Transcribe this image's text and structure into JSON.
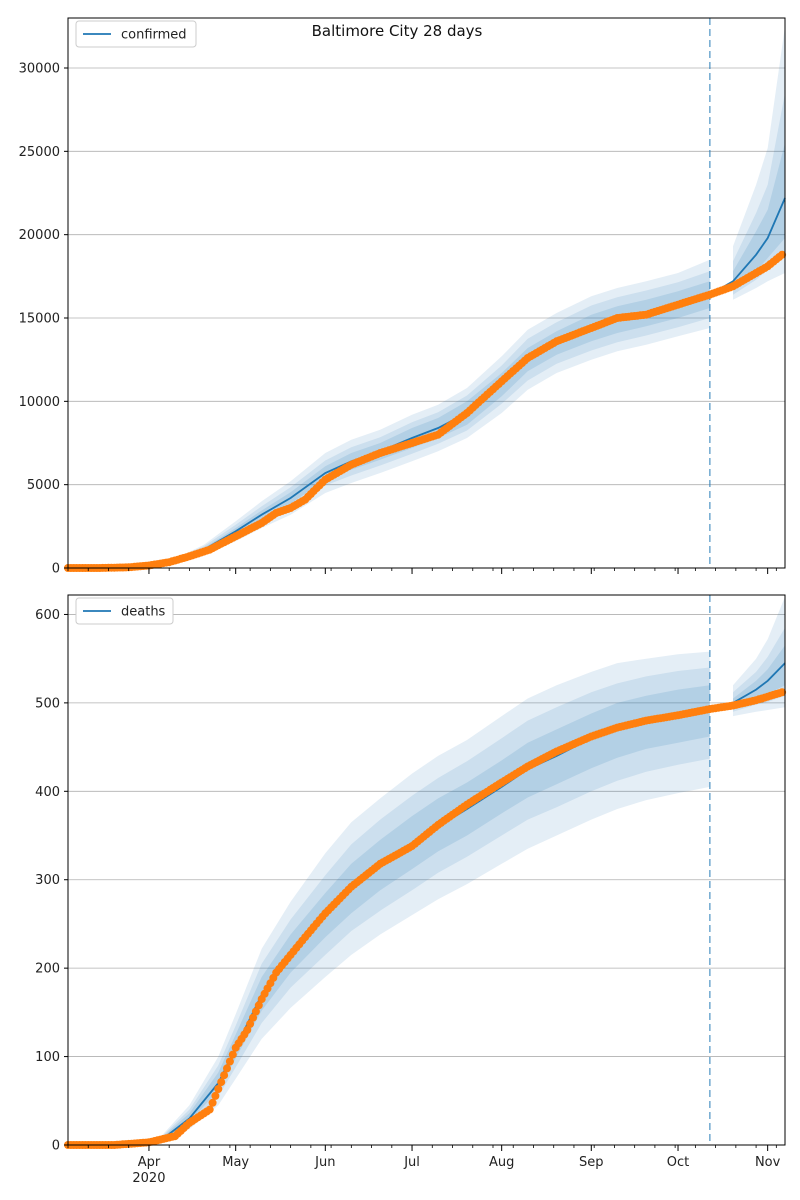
{
  "chart_data": [
    {
      "type": "line",
      "title": "Baltimore City 28 days",
      "xlabel": "",
      "ylabel": "",
      "x_axis": {
        "type": "date",
        "range": [
          "2020-03-04",
          "2020-11-07"
        ],
        "month_labels": [
          "Apr",
          "May",
          "Jun",
          "Jul",
          "Aug",
          "Sep",
          "Oct",
          "Nov"
        ],
        "year_label": "2020"
      },
      "ylim": [
        0,
        33000
      ],
      "yticks": [
        0,
        5000,
        10000,
        15000,
        20000,
        25000,
        30000
      ],
      "grid": "horizontal",
      "legend": {
        "placement": "top-left",
        "entries": [
          "confirmed"
        ]
      },
      "forecast_start": "2020-10-12",
      "series": [
        {
          "name": "confirmed",
          "color": "#1f77b4",
          "points": [
            [
              "2020-03-04",
              0
            ],
            [
              "2020-03-15",
              0
            ],
            [
              "2020-03-25",
              50
            ],
            [
              "2020-04-01",
              150
            ],
            [
              "2020-04-10",
              450
            ],
            [
              "2020-04-20",
              1100
            ],
            [
              "2020-05-01",
              2200
            ],
            [
              "2020-05-10",
              3200
            ],
            [
              "2020-05-20",
              4200
            ],
            [
              "2020-06-01",
              5700
            ],
            [
              "2020-06-10",
              6400
            ],
            [
              "2020-06-20",
              7000
            ],
            [
              "2020-07-01",
              7800
            ],
            [
              "2020-07-10",
              8400
            ],
            [
              "2020-07-20",
              9300
            ],
            [
              "2020-08-01",
              11000
            ],
            [
              "2020-08-10",
              12500
            ],
            [
              "2020-08-20",
              13500
            ],
            [
              "2020-09-01",
              14400
            ],
            [
              "2020-09-10",
              14900
            ],
            [
              "2020-09-20",
              15300
            ],
            [
              "2020-10-01",
              15800
            ],
            [
              "2020-10-12",
              16400
            ],
            [
              "2020-10-20",
              17200
            ],
            [
              "2020-10-28",
              18800
            ],
            [
              "2020-11-01",
              19800
            ],
            [
              "2020-11-07",
              22200
            ]
          ],
          "bands": [
            [
              [
                0,
                0,
                0,
                0,
                0,
                0
              ],
              [
                0,
                0,
                0,
                0,
                0,
                0
              ],
              [
                20,
                30,
                40,
                60,
                70,
                80
              ],
              [
                100,
                115,
                130,
                170,
                185,
                200
              ],
              [
                340,
                370,
                400,
                500,
                530,
                560
              ],
              [
                800,
                900,
                1000,
                1200,
                1300,
                1400
              ],
              [
                1600,
                1800,
                2000,
                2400,
                2600,
                2800
              ],
              [
                2400,
                2700,
                2950,
                3450,
                3700,
                4000
              ],
              [
                3200,
                3550,
                3850,
                4550,
                4850,
                5200
              ],
              [
                4500,
                4950,
                5300,
                6100,
                6450,
                6900
              ],
              [
                5100,
                5550,
                5900,
                6900,
                7250,
                7700
              ],
              [
                5700,
                6150,
                6500,
                7500,
                7850,
                8300
              ],
              [
                6400,
                6850,
                7200,
                8400,
                8750,
                9200
              ],
              [
                7000,
                7450,
                7800,
                9000,
                9350,
                9800
              ],
              [
                7800,
                8250,
                8600,
                10000,
                10350,
                10800
              ],
              [
                9300,
                9850,
                10300,
                11700,
                12150,
                12700
              ],
              [
                10700,
                11250,
                11800,
                13200,
                13750,
                14300
              ],
              [
                11700,
                12250,
                12800,
                14200,
                14750,
                15300
              ],
              [
                12500,
                13050,
                13600,
                15200,
                15750,
                16300
              ],
              [
                13000,
                13550,
                14100,
                15700,
                16250,
                16800
              ],
              [
                13400,
                13950,
                14500,
                16100,
                16650,
                17200
              ],
              [
                13900,
                14450,
                15000,
                16600,
                17150,
                17700
              ],
              [
                14400,
                15000,
                15600,
                17200,
                17800,
                18500
              ],
              [
                16100,
                16400,
                16700,
                17800,
                18400,
                19300
              ],
              [
                16800,
                17300,
                17800,
                20200,
                21300,
                23000
              ],
              [
                17200,
                17900,
                18600,
                21500,
                23000,
                25200
              ],
              [
                17700,
                18800,
                19800,
                25500,
                28500,
                32500
              ]
            ]
          ]
        }
      ],
      "observed": {
        "color": "#ff7f0e",
        "points": [
          [
            "2020-03-04",
            0
          ],
          [
            "2020-03-15",
            0
          ],
          [
            "2020-03-25",
            40
          ],
          [
            "2020-04-01",
            150
          ],
          [
            "2020-04-08",
            350
          ],
          [
            "2020-04-15",
            700
          ],
          [
            "2020-04-22",
            1100
          ],
          [
            "2020-05-01",
            1900
          ],
          [
            "2020-05-10",
            2700
          ],
          [
            "2020-05-15",
            3300
          ],
          [
            "2020-05-20",
            3600
          ],
          [
            "2020-05-25",
            4100
          ],
          [
            "2020-06-01",
            5300
          ],
          [
            "2020-06-10",
            6200
          ],
          [
            "2020-06-20",
            6900
          ],
          [
            "2020-07-01",
            7500
          ],
          [
            "2020-07-10",
            8000
          ],
          [
            "2020-07-20",
            9300
          ],
          [
            "2020-08-01",
            11200
          ],
          [
            "2020-08-10",
            12600
          ],
          [
            "2020-08-20",
            13600
          ],
          [
            "2020-09-01",
            14400
          ],
          [
            "2020-09-10",
            15000
          ],
          [
            "2020-09-15",
            15100
          ],
          [
            "2020-09-20",
            15200
          ],
          [
            "2020-10-01",
            15800
          ],
          [
            "2020-10-12",
            16400
          ],
          [
            "2020-10-20",
            16900
          ],
          [
            "2020-10-28",
            17700
          ],
          [
            "2020-11-01",
            18100
          ],
          [
            "2020-11-06",
            18800
          ]
        ]
      }
    },
    {
      "type": "line",
      "title": "",
      "xlabel": "",
      "ylabel": "",
      "x_axis": {
        "type": "date",
        "range": [
          "2020-03-04",
          "2020-11-07"
        ],
        "month_labels": [
          "Apr",
          "May",
          "Jun",
          "Jul",
          "Aug",
          "Sep",
          "Oct",
          "Nov"
        ],
        "year_label": "2020"
      },
      "ylim": [
        0,
        622
      ],
      "yticks": [
        0,
        100,
        200,
        300,
        400,
        500,
        600
      ],
      "grid": "horizontal",
      "legend": {
        "placement": "top-left",
        "entries": [
          "deaths"
        ]
      },
      "forecast_start": "2020-10-12",
      "series": [
        {
          "name": "deaths",
          "color": "#1f77b4",
          "points": [
            [
              "2020-03-04",
              0
            ],
            [
              "2020-03-15",
              0
            ],
            [
              "2020-03-27",
              1
            ],
            [
              "2020-04-05",
              5
            ],
            [
              "2020-04-15",
              30
            ],
            [
              "2020-04-25",
              70
            ],
            [
              "2020-05-01",
              110
            ],
            [
              "2020-05-10",
              170
            ],
            [
              "2020-05-20",
              215
            ],
            [
              "2020-06-01",
              260
            ],
            [
              "2020-06-10",
              290
            ],
            [
              "2020-06-20",
              315
            ],
            [
              "2020-07-01",
              340
            ],
            [
              "2020-07-10",
              360
            ],
            [
              "2020-07-20",
              380
            ],
            [
              "2020-08-01",
              405
            ],
            [
              "2020-08-10",
              425
            ],
            [
              "2020-08-20",
              440
            ],
            [
              "2020-09-01",
              460
            ],
            [
              "2020-09-10",
              470
            ],
            [
              "2020-09-20",
              480
            ],
            [
              "2020-10-01",
              487
            ],
            [
              "2020-10-12",
              493
            ],
            [
              "2020-10-20",
              500
            ],
            [
              "2020-10-28",
              515
            ],
            [
              "2020-11-01",
              525
            ],
            [
              "2020-11-07",
              545
            ]
          ],
          "bands": [
            [
              [
                0,
                0,
                0,
                0,
                0,
                0
              ],
              [
                0,
                0,
                0,
                0,
                0,
                0
              ],
              [
                0,
                0,
                1,
                2,
                3,
                4
              ],
              [
                2,
                3,
                4,
                7,
                8,
                9
              ],
              [
                18,
                22,
                26,
                36,
                40,
                45
              ],
              [
                45,
                55,
                62,
                82,
                90,
                100
              ],
              [
                75,
                88,
                98,
                125,
                135,
                148
              ],
              [
                120,
                138,
                152,
                190,
                205,
                222
              ],
              [
                155,
                178,
                195,
                238,
                255,
                275
              ],
              [
                190,
                215,
                235,
                285,
                305,
                330
              ],
              [
                215,
                242,
                262,
                318,
                340,
                365
              ],
              [
                238,
                265,
                288,
                345,
                368,
                392
              ],
              [
                260,
                288,
                312,
                372,
                395,
                420
              ],
              [
                278,
                308,
                332,
                392,
                415,
                440
              ],
              [
                295,
                326,
                350,
                410,
                434,
                458
              ],
              [
                318,
                350,
                375,
                435,
                460,
                485
              ],
              [
                335,
                368,
                393,
                455,
                480,
                505
              ],
              [
                350,
                382,
                408,
                470,
                495,
                520
              ],
              [
                368,
                400,
                426,
                488,
                512,
                535
              ],
              [
                380,
                412,
                438,
                500,
                522,
                545
              ],
              [
                390,
                422,
                448,
                508,
                530,
                550
              ],
              [
                398,
                430,
                455,
                515,
                536,
                555
              ],
              [
                405,
                437,
                462,
                520,
                540,
                558
              ],
              [
                485,
                490,
                495,
                505,
                512,
                520
              ],
              [
                490,
                498,
                505,
                525,
                535,
                550
              ],
              [
                492,
                501,
                510,
                538,
                552,
                572
              ],
              [
                495,
                508,
                520,
                565,
                585,
                620
              ]
            ]
          ]
        }
      ],
      "observed": {
        "color": "#ff7f0e",
        "points": [
          [
            "2020-03-04",
            0
          ],
          [
            "2020-03-20",
            0
          ],
          [
            "2020-04-01",
            3
          ],
          [
            "2020-04-10",
            10
          ],
          [
            "2020-04-15",
            25
          ],
          [
            "2020-04-22",
            40
          ],
          [
            "2020-05-01",
            110
          ],
          [
            "2020-05-05",
            130
          ],
          [
            "2020-05-10",
            165
          ],
          [
            "2020-05-15",
            195
          ],
          [
            "2020-05-20",
            215
          ],
          [
            "2020-05-25",
            235
          ],
          [
            "2020-06-01",
            262
          ],
          [
            "2020-06-10",
            292
          ],
          [
            "2020-06-20",
            318
          ],
          [
            "2020-07-01",
            338
          ],
          [
            "2020-07-10",
            362
          ],
          [
            "2020-07-20",
            385
          ],
          [
            "2020-08-01",
            410
          ],
          [
            "2020-08-10",
            428
          ],
          [
            "2020-08-20",
            445
          ],
          [
            "2020-09-01",
            462
          ],
          [
            "2020-09-10",
            472
          ],
          [
            "2020-09-20",
            480
          ],
          [
            "2020-10-01",
            486
          ],
          [
            "2020-10-12",
            493
          ],
          [
            "2020-10-20",
            497
          ],
          [
            "2020-10-28",
            503
          ],
          [
            "2020-11-06",
            512
          ]
        ]
      }
    }
  ]
}
